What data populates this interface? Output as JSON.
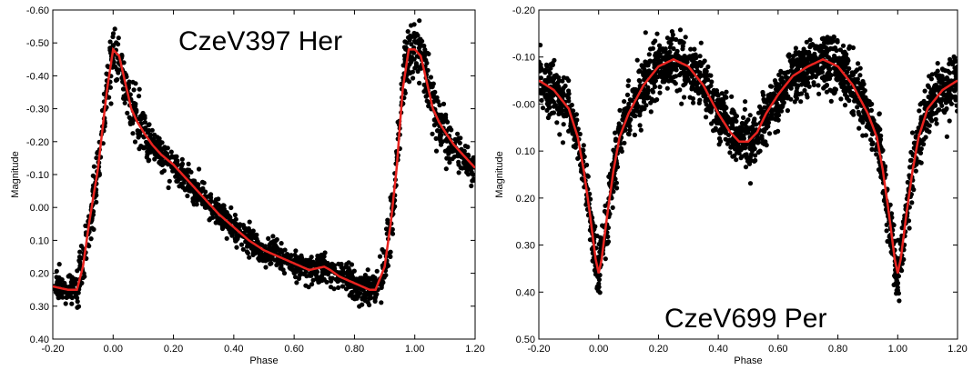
{
  "chart_data": [
    {
      "type": "scatter",
      "title": "CzeV397 Her",
      "xlabel": "Phase",
      "ylabel": "Magnitude",
      "xlim": [
        -0.2,
        1.2
      ],
      "ylim": [
        -0.6,
        0.4
      ],
      "y_inverted": true,
      "grid": false,
      "x_ticks": [
        "-0.20",
        "0.00",
        "0.20",
        "0.40",
        "0.60",
        "0.80",
        "1.00",
        "1.20"
      ],
      "y_ticks": [
        "-0.60",
        "-0.50",
        "-0.40",
        "-0.30",
        "-0.20",
        "-0.10",
        "0.00",
        "0.10",
        "0.20",
        "0.30",
        "0.40"
      ],
      "point_color": "#000000",
      "fit_color": "#e8231f",
      "series": [
        {
          "kind": "fit_curve",
          "x": [
            -0.2,
            -0.15,
            -0.12,
            -0.1,
            -0.08,
            -0.05,
            -0.02,
            0.0,
            0.02,
            0.04,
            0.06,
            0.08,
            0.1,
            0.13,
            0.16,
            0.2,
            0.25,
            0.3,
            0.35,
            0.4,
            0.45,
            0.5,
            0.55,
            0.6,
            0.65,
            0.7,
            0.72,
            0.75,
            0.8,
            0.85,
            0.87,
            0.9,
            0.92,
            0.94,
            0.96,
            0.98,
            1.0,
            1.02,
            1.04,
            1.06,
            1.08,
            1.1,
            1.13,
            1.16,
            1.2
          ],
          "y": [
            0.24,
            0.25,
            0.25,
            0.18,
            0.05,
            -0.12,
            -0.36,
            -0.48,
            -0.46,
            -0.38,
            -0.3,
            -0.26,
            -0.23,
            -0.19,
            -0.16,
            -0.13,
            -0.08,
            -0.03,
            0.02,
            0.06,
            0.1,
            0.13,
            0.15,
            0.17,
            0.19,
            0.18,
            0.19,
            0.21,
            0.23,
            0.25,
            0.25,
            0.18,
            0.05,
            -0.12,
            -0.36,
            -0.48,
            -0.48,
            -0.46,
            -0.38,
            -0.3,
            -0.26,
            -0.23,
            -0.19,
            -0.16,
            -0.12
          ]
        }
      ]
    },
    {
      "type": "scatter",
      "title": "CzeV699 Per",
      "xlabel": "Phase",
      "ylabel": "Magnitude",
      "xlim": [
        -0.2,
        1.2
      ],
      "ylim": [
        -0.2,
        0.5
      ],
      "y_inverted": true,
      "grid": false,
      "x_ticks": [
        "-0.20",
        "0.00",
        "0.20",
        "0.40",
        "0.60",
        "0.80",
        "1.00",
        "1.20"
      ],
      "y_ticks": [
        "-0.20",
        "-0.10",
        "-0.00",
        "0.10",
        "0.20",
        "0.30",
        "0.40",
        "0.50"
      ],
      "point_color": "#000000",
      "fit_color": "#e8231f",
      "series": [
        {
          "kind": "fit_curve",
          "x": [
            -0.2,
            -0.15,
            -0.1,
            -0.07,
            -0.05,
            -0.03,
            -0.01,
            0.0,
            0.01,
            0.03,
            0.05,
            0.07,
            0.1,
            0.15,
            0.2,
            0.25,
            0.3,
            0.35,
            0.4,
            0.44,
            0.47,
            0.5,
            0.53,
            0.56,
            0.6,
            0.65,
            0.7,
            0.75,
            0.8,
            0.85,
            0.9,
            0.93,
            0.95,
            0.97,
            0.99,
            1.0,
            1.01,
            1.03,
            1.05,
            1.07,
            1.1,
            1.15,
            1.2
          ],
          "y": [
            -0.05,
            -0.03,
            0.01,
            0.07,
            0.14,
            0.23,
            0.33,
            0.36,
            0.33,
            0.23,
            0.14,
            0.07,
            0.02,
            -0.04,
            -0.08,
            -0.095,
            -0.08,
            -0.04,
            0.02,
            0.06,
            0.08,
            0.08,
            0.06,
            0.02,
            -0.02,
            -0.06,
            -0.08,
            -0.095,
            -0.08,
            -0.04,
            0.02,
            0.07,
            0.14,
            0.23,
            0.33,
            0.36,
            0.33,
            0.23,
            0.14,
            0.07,
            0.01,
            -0.03,
            -0.05
          ]
        }
      ]
    }
  ]
}
